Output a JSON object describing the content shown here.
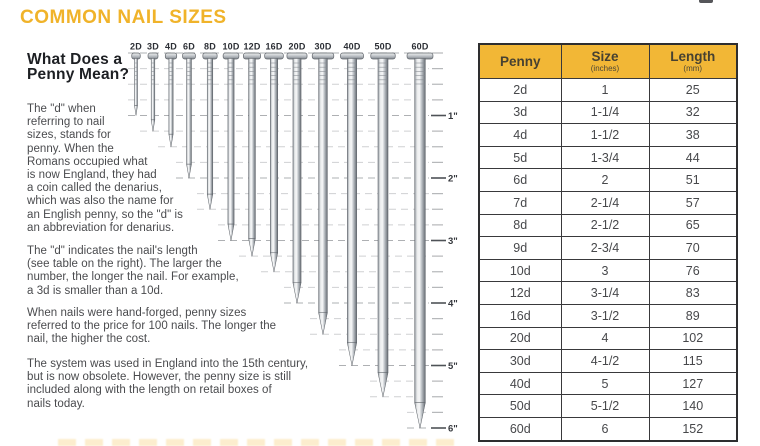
{
  "title": "COMMON NAIL SIZES",
  "intro": {
    "heading": "What Does a\nPenny Mean?",
    "paragraphs": {
      "p1": "The \"d\" when\nreferring to nail\nsizes, stands for\npenny. When the\nRomans occupied what\nis now England, they had\na coin called the denarius,\nwhich was also the name for\nan English penny, so the \"d\" is\nan abbreviation for denarius.",
      "p2": "The \"d\" indicates the nail's length\n(see table on the right). The larger the\nnumber, the longer the nail. For example,\na 3d is smaller than a 10d.",
      "p3": "When nails were hand-forged, penny sizes\nreferred to the price for 100 nails. The longer the\nnail, the higher the cost.",
      "p4": "The system was used in England into the 15th century,\nbut is now obsolete. However, the penny size is still\nincluded along with the length on retail boxes of\nnails today."
    }
  },
  "diagram": {
    "ruler_labels": [
      "1\"",
      "2\"",
      "3\"",
      "4\"",
      "5\"",
      "6\""
    ],
    "nails": [
      {
        "label": "2D",
        "inches": 1
      },
      {
        "label": "3D",
        "inches": 1.25
      },
      {
        "label": "4D",
        "inches": 1.5
      },
      {
        "label": "6D",
        "inches": 2
      },
      {
        "label": "8D",
        "inches": 2.5
      },
      {
        "label": "10D",
        "inches": 3
      },
      {
        "label": "12D",
        "inches": 3.25
      },
      {
        "label": "16D",
        "inches": 3.5
      },
      {
        "label": "20D",
        "inches": 4
      },
      {
        "label": "30D",
        "inches": 4.5
      },
      {
        "label": "40D",
        "inches": 5
      },
      {
        "label": "50D",
        "inches": 5.5
      },
      {
        "label": "60D",
        "inches": 6
      }
    ]
  },
  "table": {
    "headers": [
      {
        "label": "Penny",
        "sub": ""
      },
      {
        "label": "Size",
        "sub": "(inches)"
      },
      {
        "label": "Length",
        "sub": "(mm)"
      }
    ],
    "rows": [
      [
        "2d",
        "1",
        "25"
      ],
      [
        "3d",
        "1-1/4",
        "32"
      ],
      [
        "4d",
        "1-1/2",
        "38"
      ],
      [
        "5d",
        "1-3/4",
        "44"
      ],
      [
        "6d",
        "2",
        "51"
      ],
      [
        "7d",
        "2-1/4",
        "57"
      ],
      [
        "8d",
        "2-1/2",
        "65"
      ],
      [
        "9d",
        "2-3/4",
        "70"
      ],
      [
        "10d",
        "3",
        "76"
      ],
      [
        "12d",
        "3-1/4",
        "83"
      ],
      [
        "16d",
        "3-1/2",
        "89"
      ],
      [
        "20d",
        "4",
        "102"
      ],
      [
        "30d",
        "4-1/2",
        "115"
      ],
      [
        "40d",
        "5",
        "127"
      ],
      [
        "50d",
        "5-1/2",
        "140"
      ],
      [
        "60d",
        "6",
        "152"
      ]
    ]
  },
  "colors": {
    "gold": "#F0B32A",
    "table_header_gold": "#F2B736",
    "body_text": "#4A4B4E",
    "grid_light": "#CFD0D2",
    "grid_dark": "#AEB0B3",
    "table_border": "#39393B"
  }
}
